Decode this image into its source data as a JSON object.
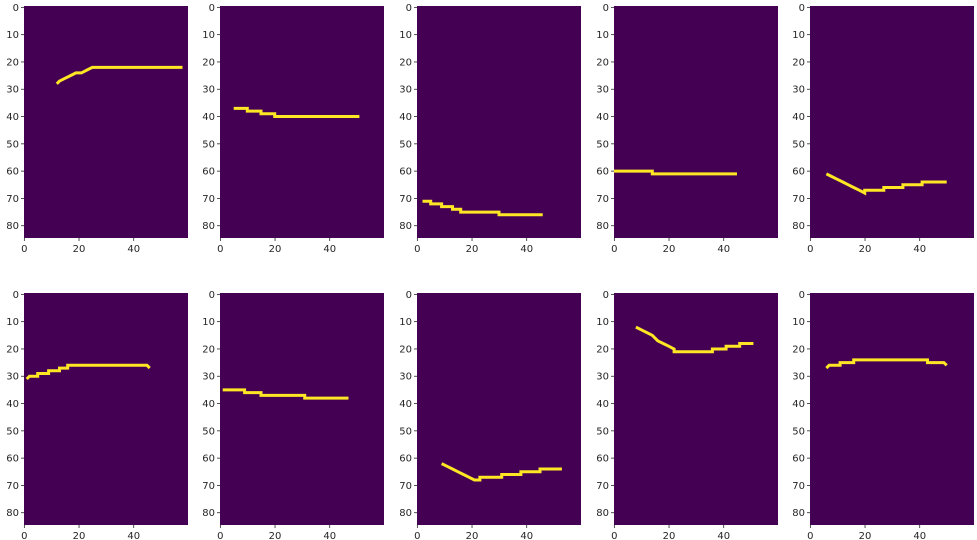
{
  "colors": {
    "background": "#440154",
    "line": "#fde725",
    "figure_bg": "#ffffff",
    "axis": "#262626"
  },
  "chart_data": [
    {
      "type": "heatmap",
      "xlim": [
        0,
        60
      ],
      "ylim": [
        85,
        0
      ],
      "x_ticks": [
        "0",
        "20",
        "40"
      ],
      "y_ticks": [
        "0",
        "10",
        "20",
        "30",
        "40",
        "50",
        "60",
        "70",
        "80"
      ],
      "line_path": [
        [
          12,
          28
        ],
        [
          13,
          27
        ],
        [
          15,
          26
        ],
        [
          17,
          25
        ],
        [
          19,
          24
        ],
        [
          21,
          24
        ],
        [
          23,
          23
        ],
        [
          25,
          22
        ],
        [
          58,
          22
        ]
      ]
    },
    {
      "type": "heatmap",
      "xlim": [
        0,
        60
      ],
      "ylim": [
        85,
        0
      ],
      "x_ticks": [
        "0",
        "20",
        "40"
      ],
      "y_ticks": [
        "0",
        "10",
        "20",
        "30",
        "40",
        "50",
        "60",
        "70",
        "80"
      ],
      "line_path": [
        [
          5,
          37
        ],
        [
          10,
          37
        ],
        [
          10,
          38
        ],
        [
          15,
          38
        ],
        [
          15,
          39
        ],
        [
          20,
          39
        ],
        [
          20,
          40
        ],
        [
          51,
          40
        ]
      ]
    },
    {
      "type": "heatmap",
      "xlim": [
        0,
        60
      ],
      "ylim": [
        85,
        0
      ],
      "x_ticks": [
        "0",
        "20",
        "40"
      ],
      "y_ticks": [
        "0",
        "10",
        "20",
        "30",
        "40",
        "50",
        "60",
        "70",
        "80"
      ],
      "line_path": [
        [
          2,
          71
        ],
        [
          5,
          71
        ],
        [
          5,
          72
        ],
        [
          9,
          72
        ],
        [
          9,
          73
        ],
        [
          13,
          73
        ],
        [
          13,
          74
        ],
        [
          16,
          74
        ],
        [
          16,
          75
        ],
        [
          30,
          75
        ],
        [
          30,
          76
        ],
        [
          46,
          76
        ]
      ]
    },
    {
      "type": "heatmap",
      "xlim": [
        0,
        60
      ],
      "ylim": [
        85,
        0
      ],
      "x_ticks": [
        "0",
        "20",
        "40"
      ],
      "y_ticks": [
        "0",
        "10",
        "20",
        "30",
        "40",
        "50",
        "60",
        "70",
        "80"
      ],
      "line_path": [
        [
          0,
          60
        ],
        [
          14,
          60
        ],
        [
          14,
          61
        ],
        [
          45,
          61
        ]
      ]
    },
    {
      "type": "heatmap",
      "xlim": [
        0,
        60
      ],
      "ylim": [
        85,
        0
      ],
      "x_ticks": [
        "0",
        "20",
        "40"
      ],
      "y_ticks": [
        "0",
        "10",
        "20",
        "30",
        "40",
        "50",
        "60",
        "70",
        "80"
      ],
      "line_path": [
        [
          6,
          61
        ],
        [
          8,
          62
        ],
        [
          10,
          63
        ],
        [
          12,
          64
        ],
        [
          14,
          65
        ],
        [
          16,
          66
        ],
        [
          18,
          67
        ],
        [
          20,
          68
        ],
        [
          20,
          67
        ],
        [
          27,
          67
        ],
        [
          27,
          66
        ],
        [
          34,
          66
        ],
        [
          34,
          65
        ],
        [
          41,
          65
        ],
        [
          41,
          64
        ],
        [
          50,
          64
        ]
      ]
    },
    {
      "type": "heatmap",
      "xlim": [
        0,
        60
      ],
      "ylim": [
        85,
        0
      ],
      "x_ticks": [
        "0",
        "20",
        "40"
      ],
      "y_ticks": [
        "0",
        "10",
        "20",
        "30",
        "40",
        "50",
        "60",
        "70",
        "80"
      ],
      "line_path": [
        [
          1,
          31
        ],
        [
          2,
          30
        ],
        [
          5,
          30
        ],
        [
          5,
          29
        ],
        [
          9,
          29
        ],
        [
          9,
          28
        ],
        [
          13,
          28
        ],
        [
          13,
          27
        ],
        [
          16,
          27
        ],
        [
          16,
          26
        ],
        [
          45,
          26
        ],
        [
          46,
          27
        ]
      ]
    },
    {
      "type": "heatmap",
      "xlim": [
        0,
        60
      ],
      "ylim": [
        85,
        0
      ],
      "x_ticks": [
        "0",
        "20",
        "40"
      ],
      "y_ticks": [
        "0",
        "10",
        "20",
        "30",
        "40",
        "50",
        "60",
        "70",
        "80"
      ],
      "line_path": [
        [
          1,
          35
        ],
        [
          9,
          35
        ],
        [
          9,
          36
        ],
        [
          15,
          36
        ],
        [
          15,
          37
        ],
        [
          31,
          37
        ],
        [
          31,
          38
        ],
        [
          47,
          38
        ]
      ]
    },
    {
      "type": "heatmap",
      "xlim": [
        0,
        60
      ],
      "ylim": [
        85,
        0
      ],
      "x_ticks": [
        "0",
        "20",
        "40"
      ],
      "y_ticks": [
        "0",
        "10",
        "20",
        "30",
        "40",
        "50",
        "60",
        "70",
        "80"
      ],
      "line_path": [
        [
          9,
          62
        ],
        [
          11,
          63
        ],
        [
          13,
          64
        ],
        [
          15,
          65
        ],
        [
          17,
          66
        ],
        [
          19,
          67
        ],
        [
          21,
          68
        ],
        [
          23,
          68
        ],
        [
          23,
          67
        ],
        [
          31,
          67
        ],
        [
          31,
          66
        ],
        [
          38,
          66
        ],
        [
          38,
          65
        ],
        [
          45,
          65
        ],
        [
          45,
          64
        ],
        [
          53,
          64
        ]
      ]
    },
    {
      "type": "heatmap",
      "xlim": [
        0,
        60
      ],
      "ylim": [
        85,
        0
      ],
      "x_ticks": [
        "0",
        "20",
        "40"
      ],
      "y_ticks": [
        "0",
        "10",
        "20",
        "30",
        "40",
        "50",
        "60",
        "70",
        "80"
      ],
      "line_path": [
        [
          8,
          12
        ],
        [
          10,
          13
        ],
        [
          12,
          14
        ],
        [
          14,
          15
        ],
        [
          16,
          17
        ],
        [
          18,
          18
        ],
        [
          20,
          19
        ],
        [
          22,
          20
        ],
        [
          22,
          21
        ],
        [
          36,
          21
        ],
        [
          36,
          20
        ],
        [
          41,
          20
        ],
        [
          41,
          19
        ],
        [
          46,
          19
        ],
        [
          46,
          18
        ],
        [
          51,
          18
        ]
      ]
    },
    {
      "type": "heatmap",
      "xlim": [
        0,
        60
      ],
      "ylim": [
        85,
        0
      ],
      "x_ticks": [
        "0",
        "20",
        "40"
      ],
      "y_ticks": [
        "0",
        "10",
        "20",
        "30",
        "40",
        "50",
        "60",
        "70",
        "80"
      ],
      "line_path": [
        [
          6,
          27
        ],
        [
          7,
          26
        ],
        [
          11,
          26
        ],
        [
          11,
          25
        ],
        [
          16,
          25
        ],
        [
          16,
          24
        ],
        [
          43,
          24
        ],
        [
          43,
          25
        ],
        [
          49,
          25
        ],
        [
          50,
          26
        ]
      ]
    }
  ]
}
